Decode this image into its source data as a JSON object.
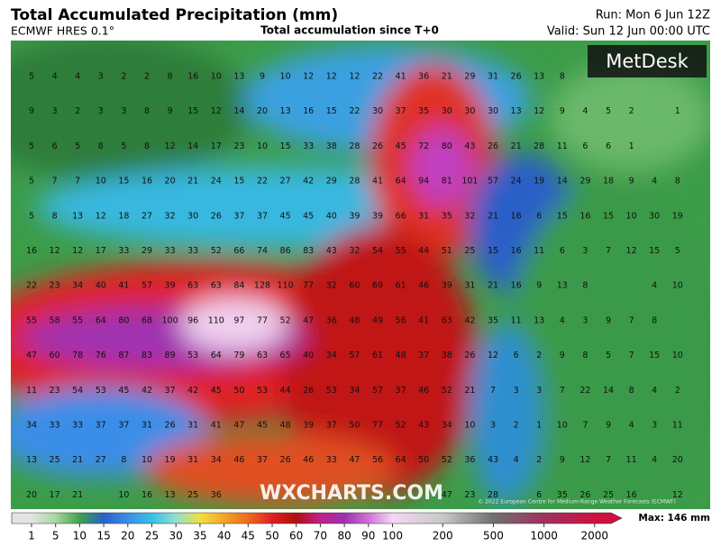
{
  "header": {
    "title": "Total Accumulated Precipitation (mm)",
    "model": "ECMWF HRES 0.1°",
    "subtitle": "Total accumulation since T+0",
    "run": "Run: Mon 6 Jun 12Z",
    "valid": "Valid: Sun 12 Jun 00:00 UTC"
  },
  "logo": "MetDesk",
  "watermark": "WXCHARTS.COM",
  "copyright": "© 2022 European Centre for Medium-Range Weather Forecasts (ECMWF)",
  "grid": {
    "rows": [
      [
        5,
        4,
        4,
        3,
        2,
        2,
        8,
        16,
        10,
        13,
        9,
        10,
        12,
        12,
        12,
        22,
        41,
        36,
        21,
        29,
        31,
        26,
        13,
        8,
        null,
        null,
        null,
        null,
        null
      ],
      [
        9,
        3,
        2,
        3,
        3,
        8,
        9,
        15,
        12,
        14,
        20,
        13,
        16,
        15,
        22,
        30,
        37,
        35,
        30,
        30,
        30,
        13,
        12,
        9,
        4,
        5,
        2,
        null,
        1
      ],
      [
        5,
        6,
        5,
        8,
        5,
        8,
        12,
        14,
        17,
        23,
        10,
        15,
        33,
        38,
        28,
        26,
        45,
        72,
        80,
        43,
        26,
        21,
        28,
        11,
        6,
        6,
        1,
        null,
        null
      ],
      [
        5,
        7,
        7,
        10,
        15,
        16,
        20,
        21,
        24,
        15,
        22,
        27,
        42,
        29,
        28,
        41,
        64,
        94,
        81,
        101,
        57,
        24,
        19,
        14,
        29,
        18,
        9,
        4,
        8
      ],
      [
        5,
        8,
        13,
        12,
        18,
        27,
        32,
        30,
        26,
        37,
        37,
        45,
        45,
        40,
        39,
        39,
        66,
        31,
        35,
        32,
        21,
        16,
        6,
        15,
        16,
        15,
        10,
        30,
        19
      ],
      [
        16,
        12,
        12,
        17,
        33,
        29,
        33,
        33,
        52,
        66,
        74,
        86,
        83,
        43,
        32,
        54,
        55,
        44,
        51,
        25,
        15,
        16,
        11,
        6,
        3,
        7,
        12,
        15,
        5
      ],
      [
        22,
        23,
        34,
        40,
        41,
        57,
        39,
        63,
        63,
        84,
        128,
        110,
        77,
        32,
        60,
        69,
        61,
        46,
        39,
        31,
        21,
        16,
        9,
        13,
        8,
        null,
        null,
        4,
        10
      ],
      [
        55,
        58,
        55,
        64,
        80,
        68,
        100,
        96,
        110,
        97,
        77,
        52,
        47,
        36,
        48,
        49,
        56,
        41,
        63,
        42,
        35,
        11,
        13,
        4,
        3,
        9,
        7,
        8,
        null
      ],
      [
        47,
        60,
        78,
        76,
        87,
        83,
        89,
        53,
        64,
        79,
        63,
        65,
        40,
        34,
        57,
        61,
        48,
        37,
        38,
        26,
        12,
        6,
        2,
        9,
        8,
        5,
        7,
        15,
        10
      ],
      [
        11,
        23,
        54,
        53,
        45,
        42,
        37,
        42,
        45,
        50,
        53,
        44,
        26,
        53,
        34,
        57,
        37,
        46,
        52,
        21,
        7,
        3,
        3,
        7,
        22,
        14,
        8,
        4,
        2
      ],
      [
        34,
        33,
        33,
        37,
        37,
        31,
        26,
        31,
        41,
        47,
        45,
        48,
        39,
        37,
        50,
        77,
        52,
        43,
        34,
        10,
        3,
        2,
        1,
        10,
        7,
        9,
        4,
        3,
        11
      ],
      [
        13,
        25,
        21,
        27,
        8,
        10,
        19,
        31,
        34,
        46,
        37,
        26,
        46,
        33,
        47,
        56,
        64,
        50,
        52,
        36,
        43,
        4,
        2,
        9,
        12,
        7,
        11,
        4,
        20
      ],
      [
        20,
        17,
        21,
        null,
        10,
        16,
        13,
        25,
        36,
        null,
        null,
        null,
        null,
        null,
        null,
        null,
        null,
        null,
        47,
        23,
        28,
        null,
        6,
        35,
        26,
        25,
        16,
        null,
        12
      ]
    ]
  },
  "legend": {
    "ticks": [
      1,
      5,
      10,
      15,
      20,
      25,
      30,
      35,
      40,
      45,
      50,
      60,
      70,
      80,
      90,
      100,
      200,
      500,
      1000,
      2000
    ],
    "colors": [
      "#e4e4e4",
      "#a6d89e",
      "#3fa34d",
      "#2a5fc8",
      "#3a8ee8",
      "#38c0e8",
      "#8fe0d0",
      "#f0e040",
      "#f5a623",
      "#f06a1e",
      "#e02020",
      "#b01010",
      "#c0208a",
      "#a030b0",
      "#d070d8",
      "#f4d8f4",
      "#c8c8c8",
      "#707070",
      "#a03060",
      "#d01040"
    ],
    "max": "Max: 146 mm"
  }
}
